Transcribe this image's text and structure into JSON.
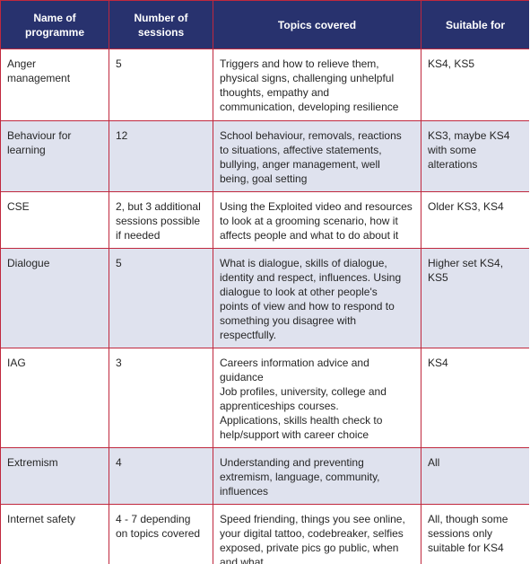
{
  "colors": {
    "header_bg": "#28326e",
    "border": "#c0283e",
    "row_alt": "#dfe2ee",
    "row": "#ffffff",
    "text": "#262626"
  },
  "table": {
    "headers": [
      "Name of\nprogramme",
      "Number of\nsessions",
      "Topics covered",
      "Suitable for"
    ],
    "rows": [
      {
        "name": "Anger\nmanagement",
        "sessions": "5",
        "topics": "Triggers and how to relieve them,\nphysical signs, challenging unhelpful\nthoughts, empathy and\ncommunication, developing resilience",
        "suitable": "KS4, KS5"
      },
      {
        "name": "Behaviour for\nlearning",
        "sessions": "12",
        "topics": "School behaviour, removals, reactions\nto situations, affective statements,\nbullying, anger management, well\nbeing, goal setting",
        "suitable": "KS3, maybe KS4\nwith some\nalterations"
      },
      {
        "name": "CSE",
        "sessions": "2, but 3 additional\nsessions possible\nif needed",
        "topics": "Using the Exploited video and resources\nto look at a grooming scenario, how it\naffects people and what to do about it",
        "suitable": "Older KS3, KS4"
      },
      {
        "name": "Dialogue",
        "sessions": "5",
        "topics": "What is dialogue, skills of dialogue,\nidentity and respect, influences. Using\ndialogue to look at other people's\npoints of view and how to respond to\nsomething you disagree with\nrespectfully.",
        "suitable": "Higher set KS4, KS5"
      },
      {
        "name": "IAG",
        "sessions": "3",
        "topics": "Careers  information advice and\nguidance\nJob profiles, university, college and\napprenticeships courses.\nApplications, skills health check to\nhelp/support with career choice",
        "suitable": "KS4"
      },
      {
        "name": "Extremism",
        "sessions": "4",
        "topics": "Understanding and preventing\nextremism, language, community,\ninfluences",
        "suitable": "All"
      },
      {
        "name": "Internet safety",
        "sessions": "4 - 7 depending\non topics covered",
        "topics": "Speed friending, things you see online,\nyour digital tattoo, codebreaker, selfies\nexposed, private pics go public, when\nand what",
        "suitable": "All, though some\nsessions only\nsuitable for KS4"
      }
    ]
  }
}
